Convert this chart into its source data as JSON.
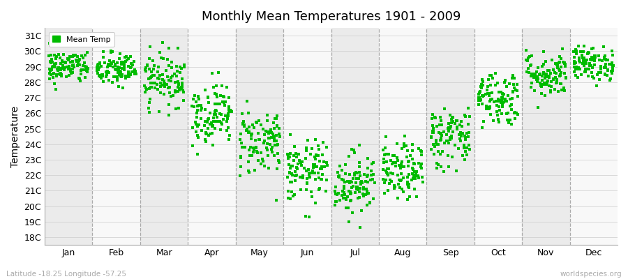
{
  "title": "Monthly Mean Temperatures 1901 - 2009",
  "ylabel": "Temperature",
  "xlabel_labels": [
    "Jan",
    "Feb",
    "Mar",
    "Apr",
    "May",
    "Jun",
    "Jul",
    "Aug",
    "Sep",
    "Oct",
    "Nov",
    "Dec"
  ],
  "yticks": [
    18,
    19,
    20,
    21,
    22,
    23,
    24,
    25,
    26,
    27,
    28,
    29,
    30,
    31
  ],
  "ytick_labels": [
    "18C",
    "19C",
    "20C",
    "21C",
    "22C",
    "23C",
    "24C",
    "25C",
    "26C",
    "27C",
    "28C",
    "29C",
    "30C",
    "31C"
  ],
  "ylim": [
    17.5,
    31.5
  ],
  "dot_color": "#00bb00",
  "dot_size": 5,
  "background_color": "#ffffff",
  "plot_bg_color_light": "#ebebeb",
  "plot_bg_color_dark": "#f8f8f8",
  "legend_label": "Mean Temp",
  "footer_left": "Latitude -18.25 Longitude -57.25",
  "footer_right": "worldspecies.org",
  "n_years": 109,
  "seed": 42,
  "monthly_means": [
    29.0,
    28.8,
    28.2,
    26.0,
    24.2,
    22.2,
    21.5,
    22.2,
    24.5,
    27.0,
    28.5,
    29.2
  ],
  "monthly_stds": [
    0.55,
    0.55,
    0.85,
    1.0,
    1.1,
    1.0,
    1.0,
    0.9,
    1.0,
    0.9,
    0.75,
    0.55
  ]
}
